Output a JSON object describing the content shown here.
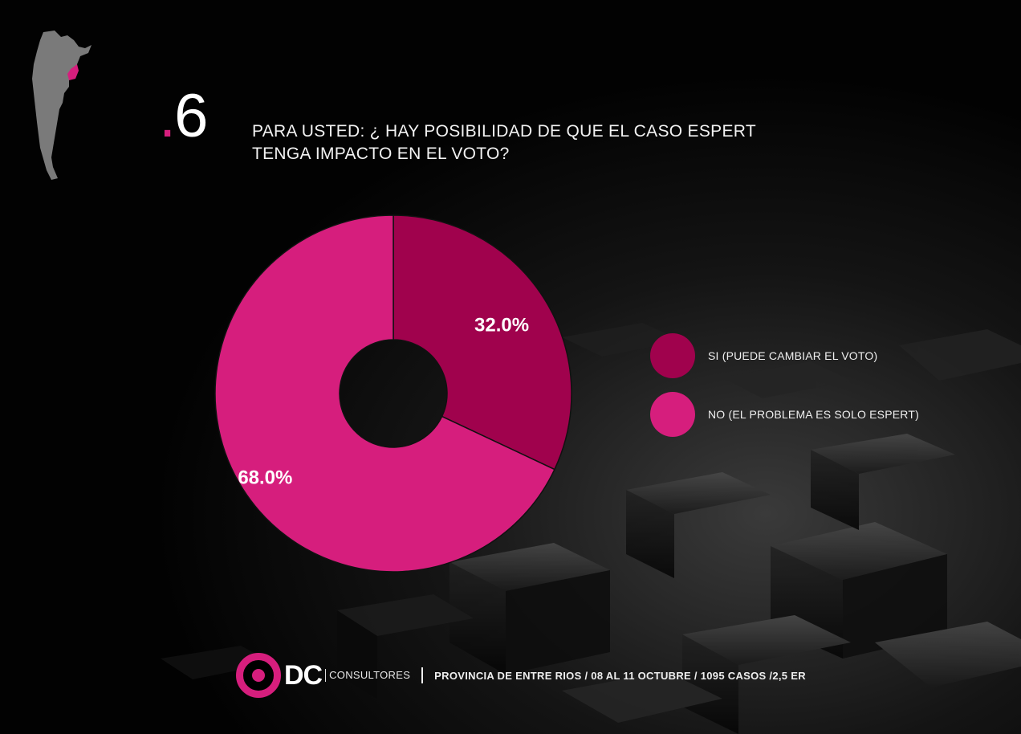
{
  "slide": {
    "number_dot": ".",
    "number_digit": "6"
  },
  "question": {
    "line1": "PARA USTED: ¿ HAY POSIBILIDAD DE QUE EL CASO ESPERT",
    "line2": "TENGA IMPACTO EN EL VOTO?"
  },
  "colors": {
    "accent": "#d61e7d",
    "slice_si": "#a0024d",
    "slice_no": "#d61e7d",
    "background": "#000000"
  },
  "icons": {
    "map": "argentina-map-icon",
    "logo": "dc-target-logo-icon"
  },
  "chart_data": {
    "type": "pie",
    "donut": true,
    "categories": [
      "SI (PUEDE CAMBIAR EL VOTO)",
      "NO (EL PROBLEMA ES SOLO ESPERT)"
    ],
    "values": [
      32.0,
      68.0
    ],
    "value_labels": [
      "32.0%",
      "68.0%"
    ],
    "legend_position": "right"
  },
  "legend": [
    {
      "label": "SI (PUEDE CAMBIAR EL VOTO)"
    },
    {
      "label": "NO (EL PROBLEMA ES SOLO ESPERT)"
    }
  ],
  "footer": {
    "logo_text": "DC",
    "logo_sub": "CONSULTORES",
    "info": "PROVINCIA DE ENTRE RIOS / 08 AL 11 OCTUBRE / 1095 CASOS /2,5 ER"
  }
}
